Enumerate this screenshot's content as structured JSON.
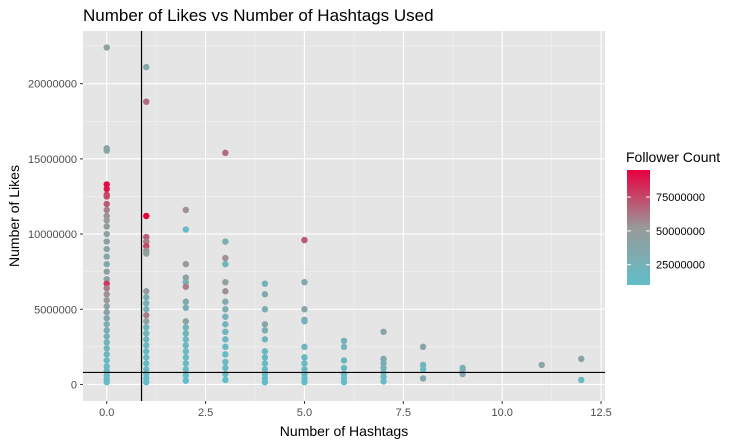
{
  "chart_data": {
    "type": "scatter",
    "title": "Number of Likes vs Number of Hashtags Used",
    "xlabel": "Number of Hashtags",
    "ylabel": "Number of Likes",
    "xlim": [
      -0.6,
      12.6
    ],
    "ylim": [
      -1100000,
      23500000
    ],
    "x_ticks": [
      0,
      2.5,
      5,
      7.5,
      10,
      12.5
    ],
    "x_tick_labels": [
      "0.0",
      "2.5",
      "5.0",
      "7.5",
      "10.0",
      "12.5"
    ],
    "y_ticks": [
      0,
      5000000,
      10000000,
      15000000,
      20000000
    ],
    "y_tick_labels": [
      "0",
      "5000000",
      "10000000",
      "15000000",
      "20000000"
    ],
    "grid": true,
    "reference_lines": {
      "vertical_x": 0.88,
      "horizontal_y": 800000
    },
    "legend": {
      "title": "Follower Count",
      "position": "right",
      "breaks": [
        25000000,
        50000000,
        75000000
      ],
      "break_labels": [
        "25000000",
        "50000000",
        "75000000"
      ],
      "range": [
        10000000,
        95000000
      ],
      "low_color": "#61bec9",
      "mid_color": "#999999",
      "high_color": "#e8003f"
    },
    "points": [
      {
        "x": 0,
        "y": 22400000,
        "c": 45000000
      },
      {
        "x": 0,
        "y": 15700000,
        "c": 42000000
      },
      {
        "x": 0,
        "y": 15550000,
        "c": 40000000
      },
      {
        "x": 0,
        "y": 13300000,
        "c": 92000000
      },
      {
        "x": 0,
        "y": 13000000,
        "c": 90000000
      },
      {
        "x": 0,
        "y": 12600000,
        "c": 80000000
      },
      {
        "x": 0,
        "y": 12500000,
        "c": 75000000
      },
      {
        "x": 0,
        "y": 12000000,
        "c": 70000000
      },
      {
        "x": 0,
        "y": 11600000,
        "c": 60000000
      },
      {
        "x": 0,
        "y": 11200000,
        "c": 55000000
      },
      {
        "x": 0,
        "y": 10900000,
        "c": 50000000
      },
      {
        "x": 0,
        "y": 10500000,
        "c": 48000000
      },
      {
        "x": 0,
        "y": 10000000,
        "c": 45000000
      },
      {
        "x": 0,
        "y": 9500000,
        "c": 42000000
      },
      {
        "x": 0,
        "y": 9000000,
        "c": 40000000
      },
      {
        "x": 0,
        "y": 8500000,
        "c": 38000000
      },
      {
        "x": 0,
        "y": 8000000,
        "c": 35000000
      },
      {
        "x": 0,
        "y": 7500000,
        "c": 45000000
      },
      {
        "x": 0,
        "y": 7000000,
        "c": 40000000
      },
      {
        "x": 0,
        "y": 6700000,
        "c": 80000000
      },
      {
        "x": 0,
        "y": 6400000,
        "c": 60000000
      },
      {
        "x": 0,
        "y": 6000000,
        "c": 55000000
      },
      {
        "x": 0,
        "y": 5600000,
        "c": 50000000
      },
      {
        "x": 0,
        "y": 5200000,
        "c": 45000000
      },
      {
        "x": 0,
        "y": 4800000,
        "c": 40000000
      },
      {
        "x": 0,
        "y": 4400000,
        "c": 35000000
      },
      {
        "x": 0,
        "y": 4000000,
        "c": 30000000
      },
      {
        "x": 0,
        "y": 3600000,
        "c": 28000000
      },
      {
        "x": 0,
        "y": 3200000,
        "c": 25000000
      },
      {
        "x": 0,
        "y": 2800000,
        "c": 22000000
      },
      {
        "x": 0,
        "y": 2400000,
        "c": 20000000
      },
      {
        "x": 0,
        "y": 2000000,
        "c": 18000000
      },
      {
        "x": 0,
        "y": 1600000,
        "c": 16000000
      },
      {
        "x": 0,
        "y": 1200000,
        "c": 15000000
      },
      {
        "x": 0,
        "y": 900000,
        "c": 14000000
      },
      {
        "x": 0,
        "y": 600000,
        "c": 13000000
      },
      {
        "x": 0,
        "y": 350000,
        "c": 12000000
      },
      {
        "x": 0,
        "y": 150000,
        "c": 11000000
      },
      {
        "x": 1,
        "y": 21100000,
        "c": 35000000
      },
      {
        "x": 1,
        "y": 18800000,
        "c": 65000000
      },
      {
        "x": 1,
        "y": 11200000,
        "c": 95000000
      },
      {
        "x": 1,
        "y": 9800000,
        "c": 70000000
      },
      {
        "x": 1,
        "y": 9500000,
        "c": 60000000
      },
      {
        "x": 1,
        "y": 9200000,
        "c": 75000000
      },
      {
        "x": 1,
        "y": 8900000,
        "c": 55000000
      },
      {
        "x": 1,
        "y": 8700000,
        "c": 45000000
      },
      {
        "x": 1,
        "y": 6200000,
        "c": 50000000
      },
      {
        "x": 1,
        "y": 5800000,
        "c": 30000000
      },
      {
        "x": 1,
        "y": 5400000,
        "c": 28000000
      },
      {
        "x": 1,
        "y": 5000000,
        "c": 25000000
      },
      {
        "x": 1,
        "y": 4600000,
        "c": 60000000
      },
      {
        "x": 1,
        "y": 4200000,
        "c": 45000000
      },
      {
        "x": 1,
        "y": 3800000,
        "c": 22000000
      },
      {
        "x": 1,
        "y": 3400000,
        "c": 20000000
      },
      {
        "x": 1,
        "y": 3000000,
        "c": 18000000
      },
      {
        "x": 1,
        "y": 2600000,
        "c": 17000000
      },
      {
        "x": 1,
        "y": 2200000,
        "c": 16000000
      },
      {
        "x": 1,
        "y": 1800000,
        "c": 15000000
      },
      {
        "x": 1,
        "y": 1400000,
        "c": 14000000
      },
      {
        "x": 1,
        "y": 1000000,
        "c": 13000000
      },
      {
        "x": 1,
        "y": 700000,
        "c": 12000000
      },
      {
        "x": 1,
        "y": 400000,
        "c": 11000000
      },
      {
        "x": 1,
        "y": 150000,
        "c": 10000000
      },
      {
        "x": 2,
        "y": 11600000,
        "c": 55000000
      },
      {
        "x": 2,
        "y": 10300000,
        "c": 15000000
      },
      {
        "x": 2,
        "y": 8000000,
        "c": 50000000
      },
      {
        "x": 2,
        "y": 7100000,
        "c": 45000000
      },
      {
        "x": 2,
        "y": 6800000,
        "c": 30000000
      },
      {
        "x": 2,
        "y": 6500000,
        "c": 60000000
      },
      {
        "x": 2,
        "y": 5500000,
        "c": 35000000
      },
      {
        "x": 2,
        "y": 5100000,
        "c": 28000000
      },
      {
        "x": 2,
        "y": 4200000,
        "c": 40000000
      },
      {
        "x": 2,
        "y": 3800000,
        "c": 22000000
      },
      {
        "x": 2,
        "y": 3400000,
        "c": 20000000
      },
      {
        "x": 2,
        "y": 3000000,
        "c": 18000000
      },
      {
        "x": 2,
        "y": 2600000,
        "c": 16000000
      },
      {
        "x": 2,
        "y": 2200000,
        "c": 15000000
      },
      {
        "x": 2,
        "y": 1800000,
        "c": 14000000
      },
      {
        "x": 2,
        "y": 1400000,
        "c": 13000000
      },
      {
        "x": 2,
        "y": 1000000,
        "c": 12000000
      },
      {
        "x": 2,
        "y": 600000,
        "c": 11000000
      },
      {
        "x": 2,
        "y": 250000,
        "c": 10000000
      },
      {
        "x": 3,
        "y": 15400000,
        "c": 65000000
      },
      {
        "x": 3,
        "y": 9500000,
        "c": 30000000
      },
      {
        "x": 3,
        "y": 8400000,
        "c": 55000000
      },
      {
        "x": 3,
        "y": 8000000,
        "c": 20000000
      },
      {
        "x": 3,
        "y": 6800000,
        "c": 45000000
      },
      {
        "x": 3,
        "y": 6200000,
        "c": 55000000
      },
      {
        "x": 3,
        "y": 5500000,
        "c": 35000000
      },
      {
        "x": 3,
        "y": 5000000,
        "c": 30000000
      },
      {
        "x": 3,
        "y": 4500000,
        "c": 25000000
      },
      {
        "x": 3,
        "y": 4000000,
        "c": 22000000
      },
      {
        "x": 3,
        "y": 3500000,
        "c": 20000000
      },
      {
        "x": 3,
        "y": 3000000,
        "c": 18000000
      },
      {
        "x": 3,
        "y": 2500000,
        "c": 16000000
      },
      {
        "x": 3,
        "y": 2000000,
        "c": 15000000
      },
      {
        "x": 3,
        "y": 1500000,
        "c": 14000000
      },
      {
        "x": 3,
        "y": 1100000,
        "c": 13000000
      },
      {
        "x": 3,
        "y": 700000,
        "c": 12000000
      },
      {
        "x": 3,
        "y": 300000,
        "c": 11000000
      },
      {
        "x": 4,
        "y": 6700000,
        "c": 25000000
      },
      {
        "x": 4,
        "y": 6000000,
        "c": 35000000
      },
      {
        "x": 4,
        "y": 5000000,
        "c": 30000000
      },
      {
        "x": 4,
        "y": 4000000,
        "c": 40000000
      },
      {
        "x": 4,
        "y": 3600000,
        "c": 28000000
      },
      {
        "x": 4,
        "y": 3000000,
        "c": 22000000
      },
      {
        "x": 4,
        "y": 2200000,
        "c": 18000000
      },
      {
        "x": 4,
        "y": 1800000,
        "c": 16000000
      },
      {
        "x": 4,
        "y": 1400000,
        "c": 15000000
      },
      {
        "x": 4,
        "y": 1000000,
        "c": 14000000
      },
      {
        "x": 4,
        "y": 700000,
        "c": 13000000
      },
      {
        "x": 4,
        "y": 400000,
        "c": 12000000
      },
      {
        "x": 4,
        "y": 150000,
        "c": 11000000
      },
      {
        "x": 5,
        "y": 9600000,
        "c": 70000000
      },
      {
        "x": 5,
        "y": 6800000,
        "c": 35000000
      },
      {
        "x": 5,
        "y": 5000000,
        "c": 40000000
      },
      {
        "x": 5,
        "y": 4300000,
        "c": 35000000
      },
      {
        "x": 5,
        "y": 4200000,
        "c": 25000000
      },
      {
        "x": 5,
        "y": 2500000,
        "c": 20000000
      },
      {
        "x": 5,
        "y": 1800000,
        "c": 16000000
      },
      {
        "x": 5,
        "y": 1400000,
        "c": 15000000
      },
      {
        "x": 5,
        "y": 1000000,
        "c": 14000000
      },
      {
        "x": 5,
        "y": 700000,
        "c": 13000000
      },
      {
        "x": 5,
        "y": 400000,
        "c": 12000000
      },
      {
        "x": 5,
        "y": 150000,
        "c": 11000000
      },
      {
        "x": 6,
        "y": 2900000,
        "c": 25000000
      },
      {
        "x": 6,
        "y": 2500000,
        "c": 22000000
      },
      {
        "x": 6,
        "y": 1600000,
        "c": 18000000
      },
      {
        "x": 6,
        "y": 1100000,
        "c": 16000000
      },
      {
        "x": 6,
        "y": 700000,
        "c": 14000000
      },
      {
        "x": 6,
        "y": 400000,
        "c": 12000000
      },
      {
        "x": 6,
        "y": 150000,
        "c": 11000000
      },
      {
        "x": 7,
        "y": 3500000,
        "c": 40000000
      },
      {
        "x": 7,
        "y": 1700000,
        "c": 35000000
      },
      {
        "x": 7,
        "y": 1400000,
        "c": 30000000
      },
      {
        "x": 7,
        "y": 1100000,
        "c": 25000000
      },
      {
        "x": 7,
        "y": 800000,
        "c": 20000000
      },
      {
        "x": 7,
        "y": 500000,
        "c": 16000000
      },
      {
        "x": 7,
        "y": 200000,
        "c": 12000000
      },
      {
        "x": 8,
        "y": 2500000,
        "c": 40000000
      },
      {
        "x": 8,
        "y": 1300000,
        "c": 20000000
      },
      {
        "x": 8,
        "y": 1000000,
        "c": 15000000
      },
      {
        "x": 8,
        "y": 400000,
        "c": 35000000
      },
      {
        "x": 9,
        "y": 1100000,
        "c": 30000000
      },
      {
        "x": 9,
        "y": 900000,
        "c": 25000000
      },
      {
        "x": 9,
        "y": 700000,
        "c": 35000000
      },
      {
        "x": 11,
        "y": 1300000,
        "c": 40000000
      },
      {
        "x": 12,
        "y": 1700000,
        "c": 40000000
      },
      {
        "x": 12,
        "y": 300000,
        "c": 15000000
      }
    ]
  }
}
